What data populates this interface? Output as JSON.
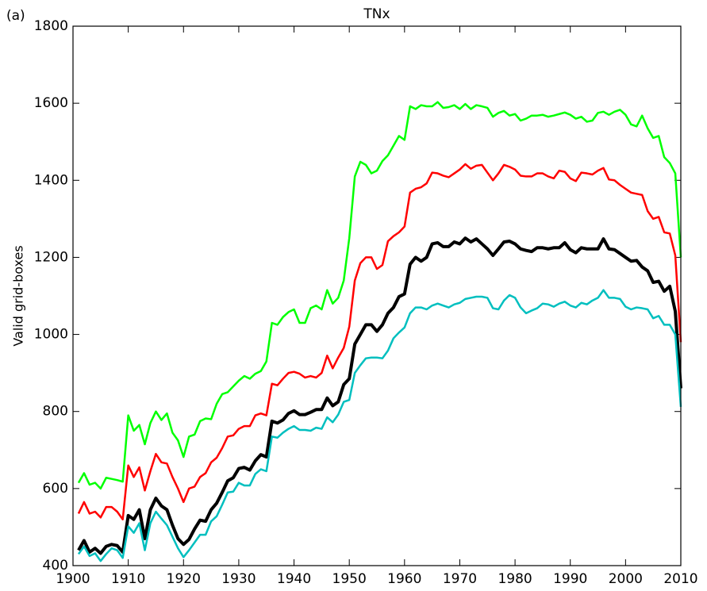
{
  "chart_data": {
    "type": "line",
    "title": "TNx",
    "panel_label": "(a)",
    "ylabel": "Valid grid-boxes",
    "x": [
      1901,
      1902,
      1903,
      1904,
      1905,
      1906,
      1907,
      1908,
      1909,
      1910,
      1911,
      1912,
      1913,
      1914,
      1915,
      1916,
      1917,
      1918,
      1919,
      1920,
      1921,
      1922,
      1923,
      1924,
      1925,
      1926,
      1927,
      1928,
      1929,
      1930,
      1931,
      1932,
      1933,
      1934,
      1935,
      1936,
      1937,
      1938,
      1939,
      1940,
      1941,
      1942,
      1943,
      1944,
      1945,
      1946,
      1947,
      1948,
      1949,
      1950,
      1951,
      1952,
      1953,
      1954,
      1955,
      1956,
      1957,
      1958,
      1959,
      1960,
      1961,
      1962,
      1963,
      1964,
      1965,
      1966,
      1967,
      1968,
      1969,
      1970,
      1971,
      1972,
      1973,
      1974,
      1975,
      1976,
      1977,
      1978,
      1979,
      1980,
      1981,
      1982,
      1983,
      1984,
      1985,
      1986,
      1987,
      1988,
      1989,
      1990,
      1991,
      1992,
      1993,
      1994,
      1995,
      1996,
      1997,
      1998,
      1999,
      2000,
      2001,
      2002,
      2003,
      2004,
      2005,
      2006,
      2007,
      2008,
      2009,
      2010
    ],
    "series": [
      {
        "color": "#00ff00",
        "linewidth": 2.5,
        "values": [
          615,
          640,
          610,
          615,
          600,
          628,
          625,
          622,
          618,
          790,
          750,
          765,
          715,
          770,
          800,
          778,
          795,
          745,
          725,
          682,
          735,
          740,
          775,
          782,
          780,
          820,
          845,
          850,
          865,
          880,
          892,
          885,
          898,
          905,
          930,
          1030,
          1025,
          1045,
          1058,
          1065,
          1030,
          1030,
          1068,
          1075,
          1065,
          1115,
          1080,
          1095,
          1140,
          1250,
          1410,
          1448,
          1440,
          1418,
          1425,
          1450,
          1465,
          1490,
          1515,
          1505,
          1592,
          1585,
          1595,
          1592,
          1592,
          1603,
          1588,
          1590,
          1595,
          1585,
          1598,
          1585,
          1595,
          1592,
          1588,
          1565,
          1575,
          1580,
          1568,
          1572,
          1555,
          1560,
          1568,
          1568,
          1570,
          1565,
          1568,
          1572,
          1576,
          1570,
          1560,
          1565,
          1552,
          1555,
          1575,
          1578,
          1570,
          1578,
          1583,
          1570,
          1545,
          1540,
          1568,
          1535,
          1510,
          1515,
          1460,
          1445,
          1418,
          1200
        ]
      },
      {
        "color": "#ff0000",
        "linewidth": 2.5,
        "values": [
          535,
          565,
          535,
          540,
          525,
          552,
          552,
          540,
          520,
          660,
          630,
          655,
          595,
          645,
          690,
          668,
          665,
          630,
          600,
          565,
          600,
          605,
          630,
          640,
          668,
          680,
          705,
          735,
          738,
          755,
          762,
          762,
          790,
          795,
          790,
          872,
          868,
          885,
          900,
          903,
          898,
          888,
          892,
          888,
          900,
          945,
          912,
          940,
          965,
          1020,
          1140,
          1185,
          1200,
          1200,
          1170,
          1180,
          1242,
          1255,
          1265,
          1280,
          1368,
          1378,
          1382,
          1392,
          1420,
          1418,
          1412,
          1408,
          1418,
          1428,
          1442,
          1430,
          1438,
          1440,
          1420,
          1400,
          1418,
          1440,
          1435,
          1428,
          1412,
          1410,
          1410,
          1418,
          1418,
          1410,
          1405,
          1425,
          1422,
          1405,
          1398,
          1420,
          1418,
          1415,
          1425,
          1432,
          1402,
          1400,
          1388,
          1378,
          1368,
          1365,
          1362,
          1320,
          1300,
          1305,
          1265,
          1262,
          1205,
          980
        ]
      },
      {
        "color": "#000000",
        "linewidth": 4,
        "values": [
          440,
          465,
          435,
          445,
          432,
          450,
          455,
          452,
          435,
          530,
          520,
          545,
          470,
          545,
          575,
          555,
          545,
          505,
          470,
          455,
          468,
          495,
          518,
          515,
          545,
          562,
          590,
          620,
          628,
          652,
          655,
          648,
          672,
          688,
          682,
          775,
          770,
          778,
          795,
          802,
          792,
          792,
          798,
          805,
          805,
          835,
          815,
          825,
          870,
          885,
          975,
          1000,
          1025,
          1025,
          1008,
          1025,
          1055,
          1070,
          1098,
          1105,
          1182,
          1200,
          1190,
          1200,
          1235,
          1238,
          1228,
          1228,
          1240,
          1235,
          1250,
          1240,
          1248,
          1235,
          1222,
          1205,
          1222,
          1240,
          1242,
          1235,
          1222,
          1218,
          1215,
          1225,
          1225,
          1222,
          1225,
          1225,
          1238,
          1220,
          1212,
          1225,
          1222,
          1222,
          1222,
          1248,
          1222,
          1220,
          1210,
          1200,
          1190,
          1192,
          1175,
          1165,
          1135,
          1138,
          1112,
          1125,
          1060,
          860
        ]
      },
      {
        "color": "#00bfbf",
        "linewidth": 2.5,
        "values": [
          430,
          450,
          425,
          432,
          412,
          430,
          445,
          440,
          420,
          502,
          485,
          510,
          440,
          510,
          540,
          522,
          505,
          475,
          445,
          422,
          440,
          460,
          480,
          480,
          515,
          528,
          558,
          590,
          592,
          615,
          608,
          608,
          638,
          650,
          645,
          735,
          732,
          745,
          755,
          762,
          752,
          752,
          750,
          758,
          755,
          785,
          772,
          792,
          825,
          830,
          900,
          920,
          938,
          940,
          940,
          938,
          958,
          990,
          1005,
          1018,
          1055,
          1070,
          1070,
          1065,
          1075,
          1080,
          1075,
          1070,
          1078,
          1082,
          1092,
          1095,
          1098,
          1098,
          1095,
          1068,
          1065,
          1088,
          1102,
          1095,
          1070,
          1055,
          1062,
          1068,
          1080,
          1078,
          1072,
          1080,
          1085,
          1075,
          1070,
          1082,
          1078,
          1088,
          1095,
          1115,
          1095,
          1095,
          1092,
          1072,
          1065,
          1070,
          1068,
          1065,
          1042,
          1048,
          1025,
          1025,
          1000,
          812
        ]
      }
    ],
    "xlim": [
      1900,
      2010
    ],
    "xticks": [
      1900,
      1910,
      1920,
      1930,
      1940,
      1950,
      1960,
      1970,
      1980,
      1990,
      2000,
      2010
    ],
    "ylim": [
      400,
      1800
    ],
    "yticks": [
      400,
      600,
      800,
      1000,
      1200,
      1400,
      1600,
      1800
    ],
    "grid": false
  }
}
